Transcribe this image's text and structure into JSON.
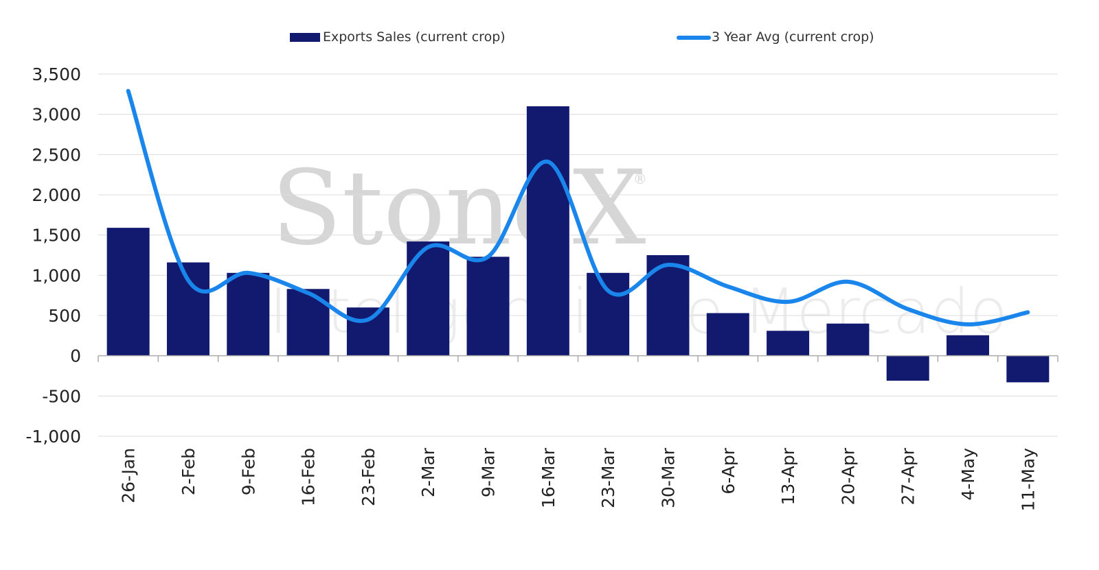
{
  "watermark": {
    "brand": "StoneX",
    "registered": "®",
    "subtitle": "Inteligência de Mercado"
  },
  "chart_data": {
    "type": "bar",
    "title": "",
    "xlabel": "",
    "ylabel": "",
    "categories": [
      "26-Jan",
      "2-Feb",
      "9-Feb",
      "16-Feb",
      "23-Feb",
      "2-Mar",
      "9-Mar",
      "16-Mar",
      "23-Mar",
      "30-Mar",
      "6-Apr",
      "13-Apr",
      "20-Apr",
      "27-Apr",
      "4-May",
      "11-May"
    ],
    "ylim": [
      -1000,
      3500
    ],
    "yticks": [
      3500,
      3000,
      2500,
      2000,
      1500,
      1000,
      500,
      0,
      -500,
      -1000
    ],
    "ytick_labels": [
      "3,500",
      "3,000",
      "2,500",
      "2,000",
      "1,500",
      "1,000",
      "500",
      "0",
      "-500",
      "-1,000"
    ],
    "grid": true,
    "legend_position": "top-center",
    "series": [
      {
        "name": "Exports Sales (current crop)",
        "type": "bar",
        "color": "#111a6e",
        "values": [
          1590,
          1160,
          1030,
          830,
          600,
          1420,
          1230,
          3100,
          1030,
          1250,
          530,
          310,
          400,
          -310,
          255,
          -330
        ]
      },
      {
        "name": "3 Year Avg (current crop)",
        "type": "line",
        "color": "#1a86eb",
        "values": [
          3290,
          940,
          1030,
          780,
          450,
          1350,
          1230,
          2410,
          810,
          1130,
          860,
          670,
          920,
          580,
          390,
          540
        ]
      }
    ]
  }
}
